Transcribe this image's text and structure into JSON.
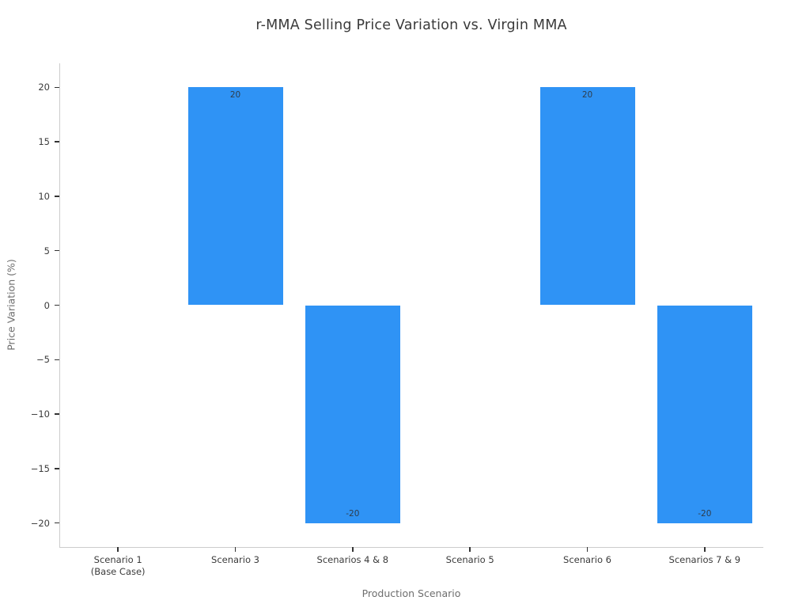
{
  "chart_data": {
    "type": "bar",
    "title": "r-MMA Selling Price Variation vs. Virgin MMA",
    "xlabel": "Production Scenario",
    "ylabel": "Price Variation (%)",
    "categories": [
      "Scenario 1\n(Base Case)",
      "Scenario 3",
      "Scenarios 4 & 8",
      "Scenario 5",
      "Scenario 6",
      "Scenarios 7 & 9"
    ],
    "values": [
      0,
      20,
      -20,
      0,
      20,
      -20
    ],
    "bar_labels": [
      "",
      "20",
      "-20",
      "",
      "20",
      "-20"
    ],
    "ylim": [
      -22.2,
      22.2
    ],
    "yticks": [
      -20,
      -15,
      -10,
      -5,
      0,
      5,
      10,
      15,
      20
    ],
    "bar_color": "#2F93F5",
    "grid": false,
    "legend": false
  }
}
